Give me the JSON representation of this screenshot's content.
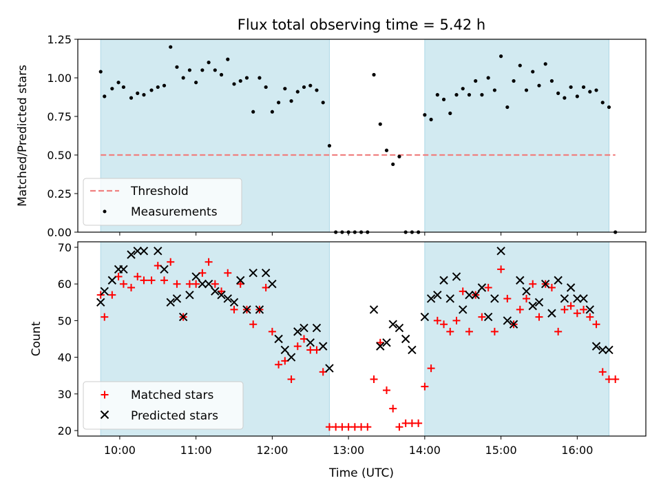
{
  "title": "Flux total observing time = 5.42 h",
  "colors": {
    "band": "#add8e6",
    "threshold": "#f08080",
    "measurement": "#000000",
    "matched": "#ff0000",
    "predicted": "#000000"
  },
  "chart_data": [
    {
      "type": "scatter",
      "ylabel": "Matched/Predicted stars",
      "xlabel": "",
      "xlim": [
        "09:27",
        "16:54"
      ],
      "ylim": [
        0,
        1.25
      ],
      "yticks": [
        "0.00",
        "0.25",
        "0.50",
        "0.75",
        "1.00",
        "1.25"
      ],
      "yticks_values": [
        0,
        0.25,
        0.5,
        0.75,
        1.0,
        1.25
      ],
      "xticks_visible": false,
      "bands": [
        [
          "09:45",
          "12:45"
        ],
        [
          "14:00",
          "16:25"
        ]
      ],
      "legend_position": "lower-left",
      "legend": [
        "Threshold",
        "Measurements"
      ],
      "threshold": {
        "name": "Threshold",
        "y": 0.5,
        "x_range": [
          "09:45",
          "16:30"
        ],
        "style": "dashed"
      },
      "series": [
        {
          "name": "Measurements",
          "marker": "dot",
          "x": [
            "09:45",
            "09:48",
            "09:54",
            "09:59",
            "10:03",
            "10:09",
            "10:14",
            "10:19",
            "10:25",
            "10:30",
            "10:35",
            "10:40",
            "10:45",
            "10:50",
            "10:55",
            "11:00",
            "11:05",
            "11:10",
            "11:15",
            "11:20",
            "11:25",
            "11:30",
            "11:35",
            "11:40",
            "11:45",
            "11:50",
            "11:55",
            "12:00",
            "12:05",
            "12:10",
            "12:15",
            "12:20",
            "12:25",
            "12:30",
            "12:35",
            "12:40",
            "12:45",
            "12:50",
            "12:55",
            "13:00",
            "13:05",
            "13:10",
            "13:15",
            "13:20",
            "13:25",
            "13:30",
            "13:35",
            "13:40",
            "13:45",
            "13:50",
            "13:55",
            "14:00",
            "14:05",
            "14:10",
            "14:15",
            "14:20",
            "14:25",
            "14:30",
            "14:35",
            "14:40",
            "14:45",
            "14:50",
            "14:55",
            "15:00",
            "15:05",
            "15:10",
            "15:15",
            "15:20",
            "15:25",
            "15:30",
            "15:35",
            "15:40",
            "15:45",
            "15:50",
            "15:55",
            "16:00",
            "16:05",
            "16:10",
            "16:15",
            "16:20",
            "16:25",
            "16:30"
          ],
          "y": [
            1.04,
            0.88,
            0.93,
            0.97,
            0.94,
            0.87,
            0.9,
            0.89,
            0.92,
            0.94,
            0.95,
            1.2,
            1.07,
            1.0,
            1.05,
            0.97,
            1.05,
            1.1,
            1.05,
            1.02,
            1.12,
            0.96,
            0.98,
            1.0,
            0.78,
            1.0,
            0.94,
            0.78,
            0.84,
            0.93,
            0.85,
            0.91,
            0.94,
            0.95,
            0.92,
            0.84,
            0.56,
            0.0,
            0.0,
            0.0,
            0.0,
            0.0,
            0.0,
            1.02,
            0.7,
            0.53,
            0.44,
            0.49,
            0.0,
            0.0,
            0.0,
            0.76,
            0.73,
            0.89,
            0.86,
            0.77,
            0.89,
            0.93,
            0.89,
            0.98,
            0.89,
            1.0,
            0.92,
            1.14,
            0.81,
            0.98,
            1.08,
            0.92,
            1.04,
            0.95,
            1.09,
            0.98,
            0.9,
            0.87,
            0.94,
            0.88,
            0.94,
            0.91,
            0.92,
            0.84,
            0.81,
            0.0
          ]
        }
      ]
    },
    {
      "type": "scatter",
      "ylabel": "Count",
      "xlabel": "Time (UTC)",
      "xlim": [
        "09:27",
        "16:54"
      ],
      "ylim": [
        18.5,
        71.5
      ],
      "yticks": [
        "20",
        "30",
        "40",
        "50",
        "60",
        "70"
      ],
      "yticks_values": [
        20,
        30,
        40,
        50,
        60,
        70
      ],
      "xticks": [
        "10:00",
        "11:00",
        "12:00",
        "13:00",
        "14:00",
        "15:00",
        "16:00"
      ],
      "bands": [
        [
          "09:45",
          "12:45"
        ],
        [
          "14:00",
          "16:25"
        ]
      ],
      "legend_position": "lower-left",
      "legend": [
        "Matched stars",
        "Predicted stars"
      ],
      "series": [
        {
          "name": "Matched stars",
          "marker": "plus",
          "x": [
            "09:45",
            "09:48",
            "09:54",
            "09:59",
            "10:03",
            "10:09",
            "10:14",
            "10:19",
            "10:25",
            "10:30",
            "10:35",
            "10:40",
            "10:45",
            "10:50",
            "10:55",
            "11:00",
            "11:05",
            "11:10",
            "11:15",
            "11:20",
            "11:25",
            "11:30",
            "11:35",
            "11:40",
            "11:45",
            "11:50",
            "11:55",
            "12:00",
            "12:05",
            "12:10",
            "12:15",
            "12:20",
            "12:25",
            "12:30",
            "12:35",
            "12:40",
            "12:45",
            "12:50",
            "12:55",
            "13:00",
            "13:05",
            "13:10",
            "13:15",
            "13:20",
            "13:25",
            "13:30",
            "13:35",
            "13:40",
            "13:45",
            "13:50",
            "13:55",
            "14:00",
            "14:05",
            "14:10",
            "14:15",
            "14:20",
            "14:25",
            "14:30",
            "14:35",
            "14:40",
            "14:45",
            "14:50",
            "14:55",
            "15:00",
            "15:05",
            "15:10",
            "15:15",
            "15:20",
            "15:25",
            "15:30",
            "15:35",
            "15:40",
            "15:45",
            "15:50",
            "15:55",
            "16:00",
            "16:05",
            "16:10",
            "16:15",
            "16:20",
            "16:25",
            "16:30"
          ],
          "y": [
            57,
            51,
            57,
            62,
            60,
            59,
            62,
            61,
            61,
            65,
            61,
            66,
            60,
            51,
            60,
            60,
            63,
            66,
            60,
            58,
            63,
            53,
            60,
            53,
            49,
            53,
            59,
            47,
            38,
            39,
            34,
            43,
            45,
            42,
            42,
            36,
            21,
            21,
            21,
            21,
            21,
            21,
            21,
            34,
            44,
            31,
            26,
            21,
            22,
            22,
            22,
            32,
            37,
            50,
            49,
            47,
            50,
            58,
            47,
            57,
            51,
            59,
            47,
            64,
            56,
            49,
            53,
            56,
            60,
            51,
            60,
            59,
            47,
            53,
            54,
            52,
            53,
            51,
            49,
            36,
            34,
            34
          ]
        },
        {
          "name": "Predicted stars",
          "marker": "x",
          "x": [
            "09:45",
            "09:48",
            "09:54",
            "09:59",
            "10:03",
            "10:09",
            "10:14",
            "10:19",
            "10:30",
            "10:35",
            "10:40",
            "10:45",
            "10:50",
            "10:55",
            "11:00",
            "11:05",
            "11:10",
            "11:15",
            "11:20",
            "11:25",
            "11:30",
            "11:35",
            "11:40",
            "11:45",
            "11:50",
            "11:55",
            "12:00",
            "12:05",
            "12:10",
            "12:15",
            "12:20",
            "12:25",
            "12:30",
            "12:35",
            "12:40",
            "12:45",
            "13:20",
            "13:25",
            "13:30",
            "13:35",
            "13:40",
            "13:45",
            "13:50",
            "14:00",
            "14:05",
            "14:10",
            "14:15",
            "14:20",
            "14:25",
            "14:30",
            "14:35",
            "14:40",
            "14:45",
            "14:50",
            "14:55",
            "15:00",
            "15:05",
            "15:10",
            "15:15",
            "15:20",
            "15:25",
            "15:30",
            "15:35",
            "15:40",
            "15:45",
            "15:50",
            "15:55",
            "16:00",
            "16:05",
            "16:10",
            "16:15",
            "16:20",
            "16:25"
          ],
          "y": [
            55,
            58,
            61,
            64,
            64,
            68,
            69,
            69,
            69,
            64,
            55,
            56,
            51,
            57,
            62,
            60,
            60,
            58,
            57,
            56,
            55,
            61,
            53,
            63,
            53,
            63,
            60,
            45,
            42,
            40,
            47,
            48,
            44,
            48,
            43,
            37,
            53,
            43,
            44,
            49,
            48,
            45,
            42,
            51,
            56,
            57,
            61,
            56,
            62,
            53,
            57,
            57,
            59,
            51,
            56,
            69,
            50,
            49,
            61,
            58,
            54,
            55,
            60,
            52,
            61,
            56,
            59,
            56,
            56,
            53,
            43,
            42,
            42
          ]
        }
      ]
    }
  ]
}
